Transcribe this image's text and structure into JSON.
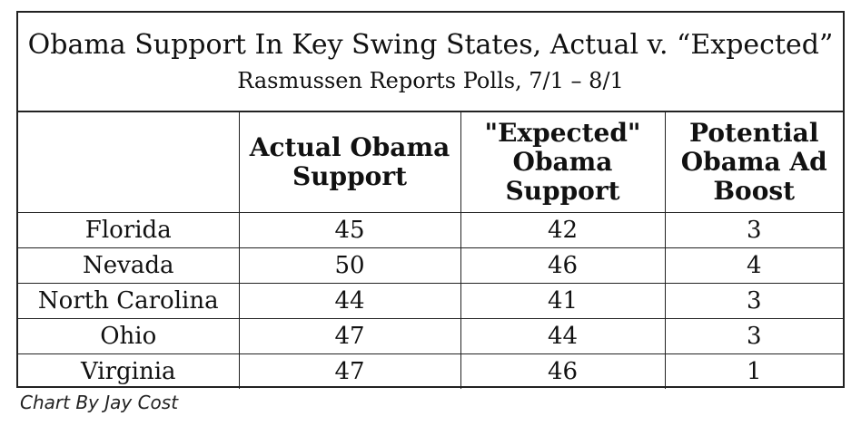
{
  "chart_data": {
    "type": "table",
    "title": "Obama Support In Key Swing States, Actual v. “Expected”",
    "subtitle": "Rasmussen Reports Polls, 7/1 – 8/1",
    "columns": [
      "",
      "Actual Obama Support",
      "\"Expected\" Obama Support",
      "Potential Obama Ad Boost"
    ],
    "rows": [
      {
        "state": "Florida",
        "actual": "45",
        "expected": "42",
        "boost": "3"
      },
      {
        "state": "Nevada",
        "actual": "50",
        "expected": "46",
        "boost": "4"
      },
      {
        "state": "North Carolina",
        "actual": "44",
        "expected": "41",
        "boost": "3"
      },
      {
        "state": "Ohio",
        "actual": "47",
        "expected": "44",
        "boost": "3"
      },
      {
        "state": "Virginia",
        "actual": "47",
        "expected": "46",
        "boost": "1"
      }
    ]
  },
  "credit": "Chart By Jay Cost"
}
